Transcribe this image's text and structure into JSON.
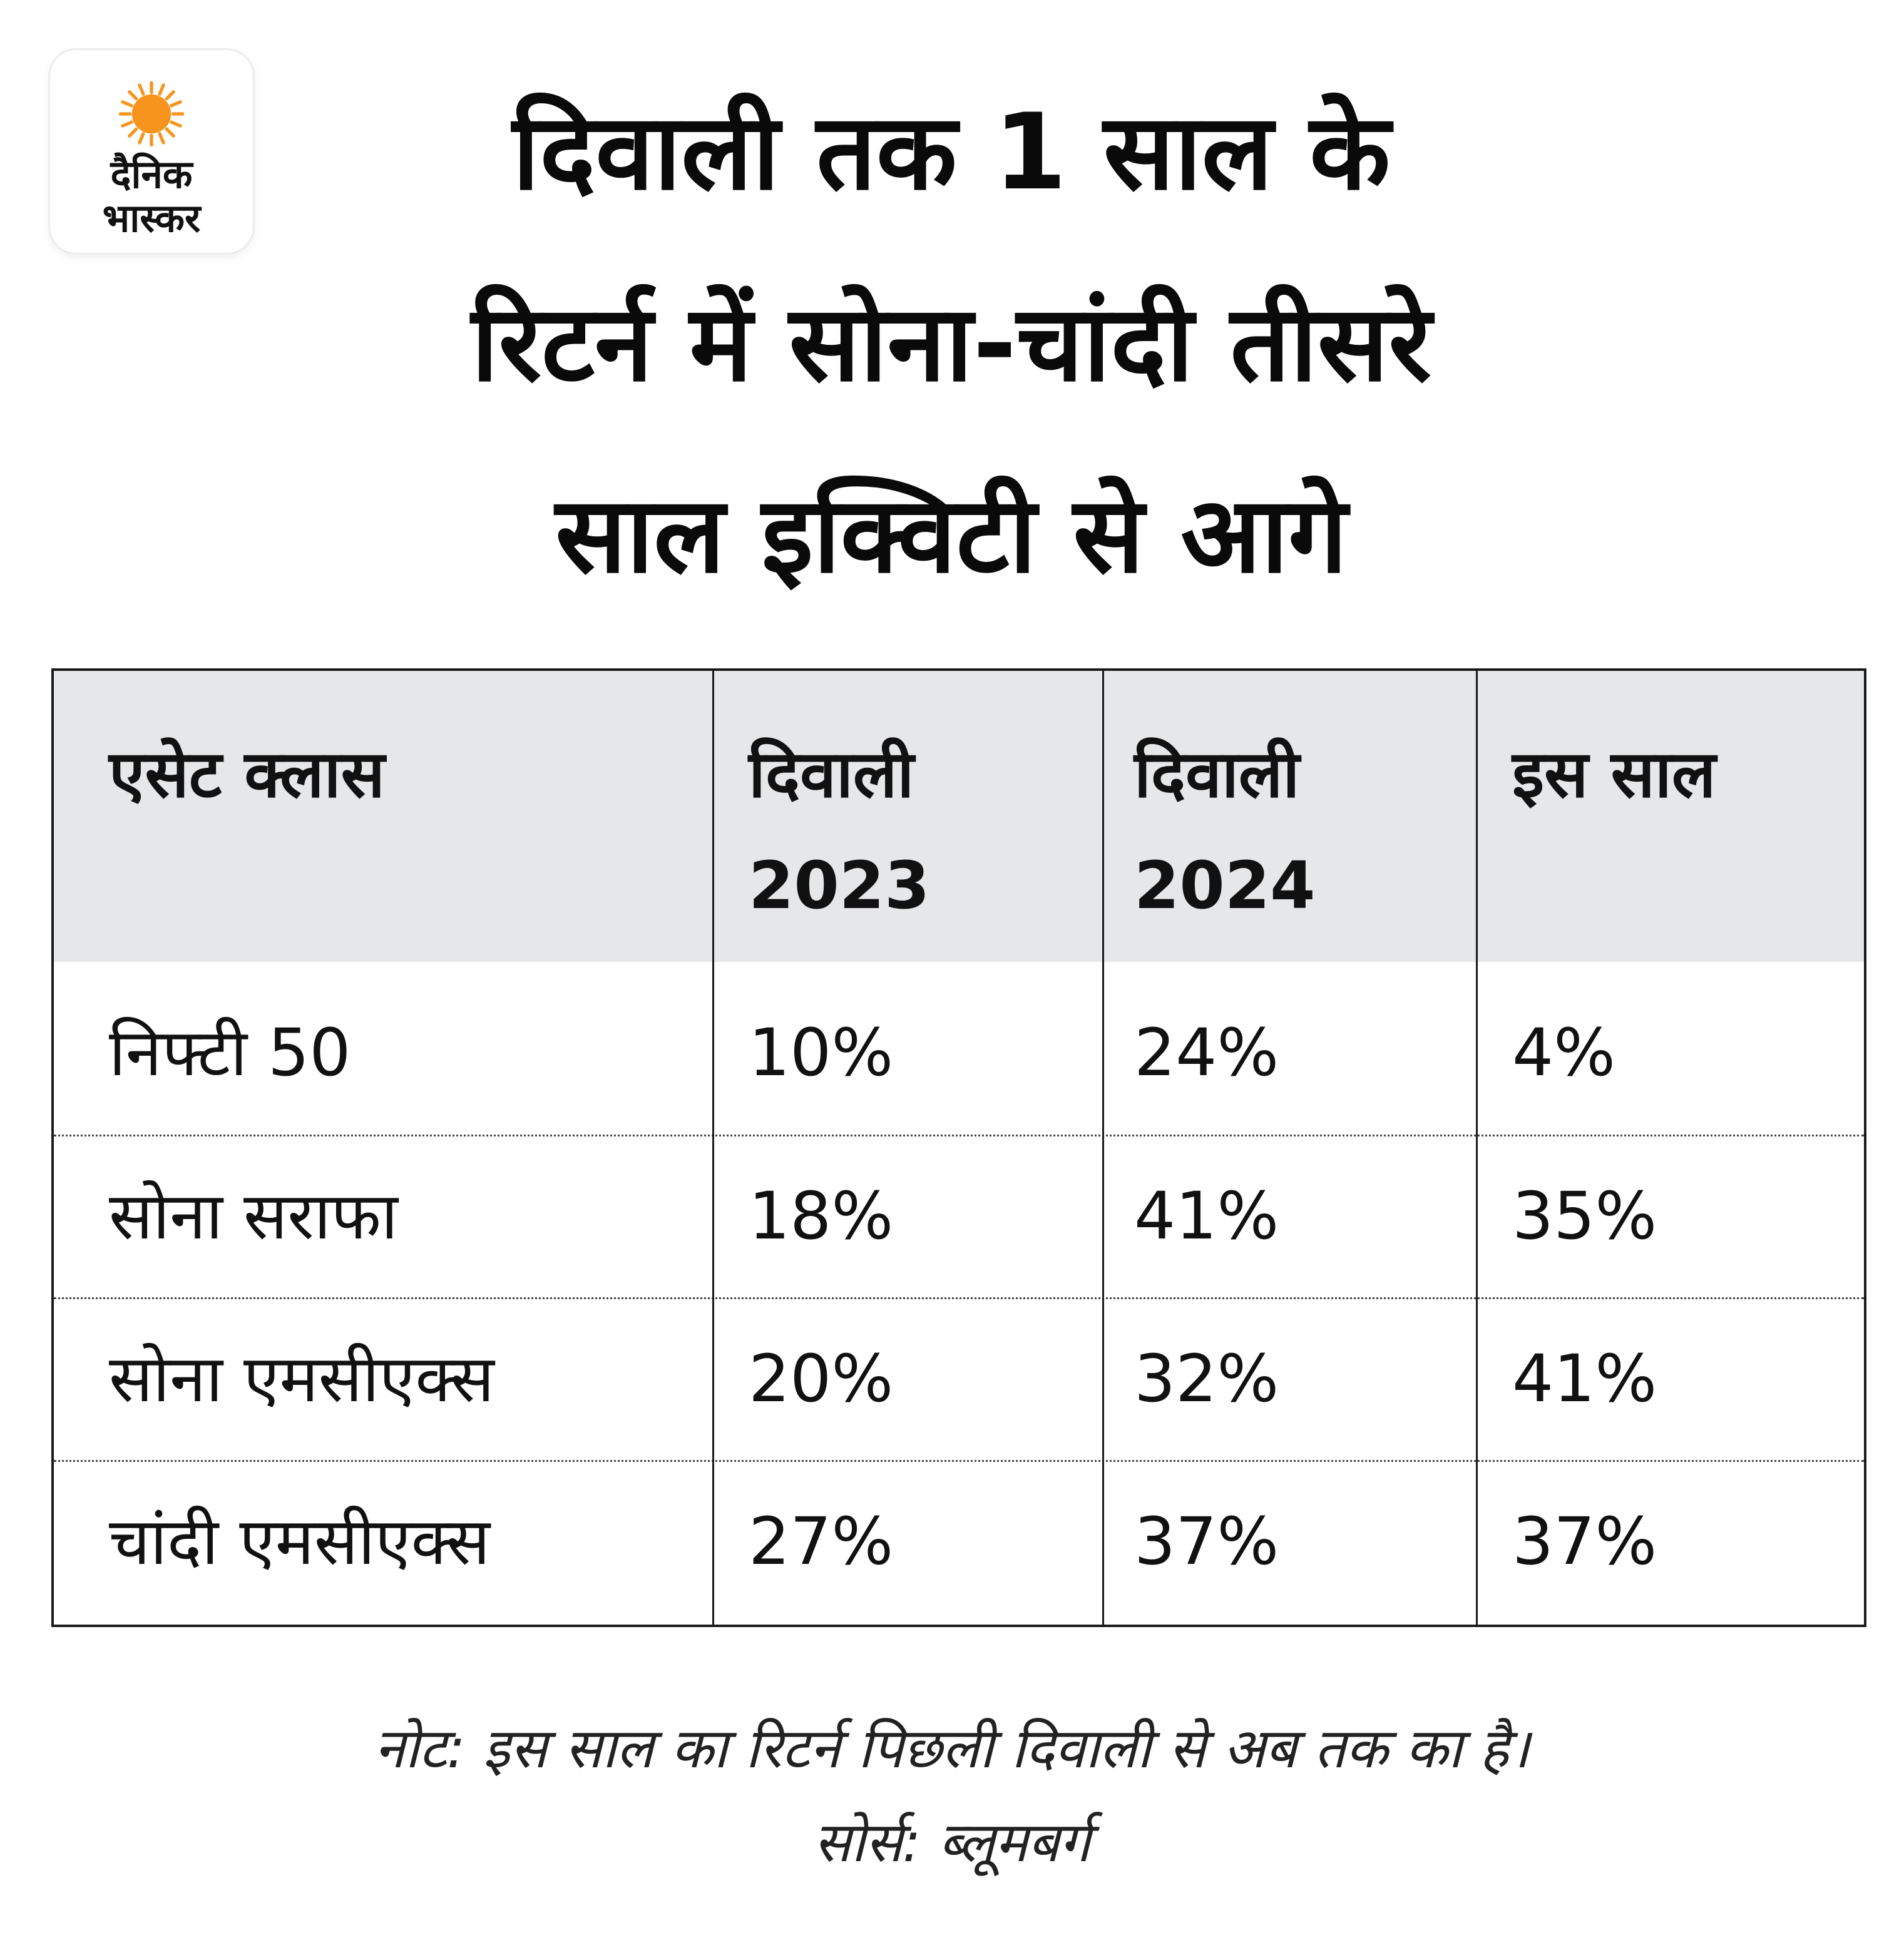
{
  "logo": {
    "line1": "दैनिक",
    "line2": "भास्कर",
    "sun_color": "#f7941d"
  },
  "title": {
    "lines": [
      "दिवाली तक 1 साल के",
      "रिटर्न में सोना-चांदी तीसरे",
      "साल इक्विटी से आगे"
    ]
  },
  "table": {
    "header_bg": "#e6e7e9",
    "columns": [
      {
        "line1": "एसेट क्लास",
        "line2": ""
      },
      {
        "line1": "दिवाली",
        "line2": "2023"
      },
      {
        "line1": "दिवाली",
        "line2": "2024"
      },
      {
        "line1": "इस साल",
        "line2": ""
      }
    ],
    "rows": [
      [
        "निफ्टी 50",
        "10%",
        "24%",
        "4%"
      ],
      [
        "सोना सराफा",
        "18%",
        "41%",
        "35%"
      ],
      [
        "सोना एमसीएक्स",
        "20%",
        "32%",
        "41%"
      ],
      [
        "चांदी एमसीएक्स",
        "27%",
        "37%",
        "37%"
      ]
    ]
  },
  "notes": {
    "note": "नोट: इस साल का रिटर्न पिछली दिवाली से अब तक का है।",
    "source": "सोर्स: ब्लूमबर्ग"
  },
  "chart_data": {
    "type": "table",
    "title": "दिवाली तक 1 साल के रिटर्न में सोना-चांदी तीसरे साल इक्विटी से आगे",
    "columns": [
      "एसेट क्लास",
      "दिवाली 2023",
      "दिवाली 2024",
      "इस साल"
    ],
    "rows": [
      {
        "asset": "निफ्टी 50",
        "values": [
          10,
          24,
          4
        ]
      },
      {
        "asset": "सोना सराफा",
        "values": [
          18,
          41,
          35
        ]
      },
      {
        "asset": "सोना एमसीएक्स",
        "values": [
          20,
          32,
          41
        ]
      },
      {
        "asset": "चांदी एमसीएक्स",
        "values": [
          27,
          37,
          37
        ]
      }
    ],
    "unit": "%"
  }
}
